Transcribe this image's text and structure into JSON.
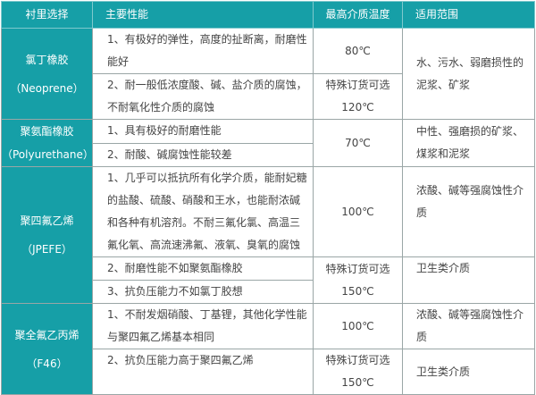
{
  "headers": [
    "衬里选择",
    "主要性能",
    "最高介质温度",
    "适用范围"
  ],
  "groups": [
    {
      "name": "氯丁橡胶",
      "sub": "（Neoprene）",
      "props": [
        "1、有极好的弹性，高度的扯断离，耐磨性能好",
        "2、耐一般低浓度酸、碱、盐介质的腐蚀，不耐氧化性介质的腐蚀"
      ],
      "temps": [
        "80℃",
        "特殊订货可选",
        "120℃"
      ],
      "uses": [
        "水、污水、弱磨损性的泥浆、矿浆"
      ]
    },
    {
      "name": "聚氨酯橡胶",
      "sub": "（Polyurethane）",
      "props": [
        "1、具有极好的耐磨性能",
        "2、耐酸、碱腐蚀性能较差"
      ],
      "temps": [
        "70℃"
      ],
      "uses": [
        "中性、强磨损的矿浆、煤浆和泥浆"
      ]
    },
    {
      "name": "聚四氟乙烯",
      "sub": "（JPEFE）",
      "props": [
        "1、几乎可以抵抗所有化学介质，能耐妃糖的盐酸、硫酸、硝酸和王水，也能耐浓碱和各种有机溶剂。不耐三氟化氯、高温三氟化氧、高流速沸氟、液氧、臭氧的腐蚀",
        "2、耐磨性能不如聚氨酯橡胶",
        "3、抗负压能力不如氯丁胶想"
      ],
      "temps": [
        "100℃",
        "特殊订货可选",
        "150℃"
      ],
      "uses": [
        "浓酸、碱等强腐蚀性介质",
        "卫生类介质"
      ]
    },
    {
      "name": "聚全氟乙丙烯",
      "sub": "（F46）",
      "props": [
        "1、不耐发烟硝酸、丁基锂，其他化学性能与聚四氟乙烯基本相同",
        "2、抗负压能力高于聚四氟乙烯"
      ],
      "temps": [
        "100℃",
        "特殊订货可选",
        "150℃"
      ],
      "uses": [
        "浓酸、碱等强腐蚀性介质",
        "卫生类介质"
      ]
    }
  ]
}
